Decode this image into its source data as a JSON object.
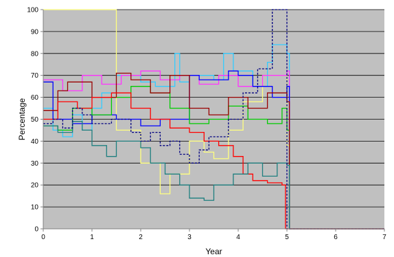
{
  "chart_data": {
    "type": "line",
    "title": "",
    "xlabel": "Year",
    "ylabel": "Percentage",
    "xlim": [
      0,
      7
    ],
    "ylim": [
      0,
      100
    ],
    "x_ticks": [
      "0",
      "1",
      "2",
      "3",
      "4",
      "5",
      "6",
      "7"
    ],
    "y_ticks": [
      "0",
      "10",
      "20",
      "30",
      "40",
      "50",
      "60",
      "70",
      "80",
      "90",
      "100"
    ],
    "grid": "horizontal",
    "legend": "none",
    "colors": {
      "plot_background": "#c0c0c0",
      "gridlines": "#000000",
      "page_background": "#ffffff"
    },
    "series": [
      {
        "color": "#ffff80",
        "x": [
          0,
          1.5,
          1.5,
          2.0,
          2.0,
          2.4,
          2.4,
          2.6,
          2.6,
          3.0,
          3.0,
          3.3,
          3.3,
          3.5,
          3.5,
          3.8,
          3.8,
          4.1,
          4.1,
          4.5,
          4.5,
          5.0,
          5.0,
          5.05,
          5.05,
          7.0
        ],
        "y": [
          100,
          100,
          45,
          45,
          30,
          30,
          16,
          16,
          25,
          25,
          40,
          40,
          35,
          35,
          32,
          32,
          45,
          45,
          58,
          58,
          70,
          70,
          38,
          38,
          0,
          0
        ]
      },
      {
        "color": "#33ccff",
        "x": [
          0,
          0.2,
          0.2,
          0.4,
          0.4,
          0.6,
          0.6,
          0.8,
          0.8,
          1.0,
          1.0,
          1.2,
          1.2,
          1.5,
          1.5,
          2.0,
          2.0,
          2.3,
          2.3,
          2.7,
          2.7,
          2.8,
          2.8,
          3.0,
          3.0,
          3.5,
          3.5,
          3.7,
          3.7,
          3.9,
          3.9,
          4.3,
          4.3,
          4.6,
          4.6,
          4.7,
          4.7,
          5.0,
          5.0,
          5.05,
          5.05,
          7.0
        ],
        "y": [
          55,
          55,
          45,
          45,
          42,
          42,
          52,
          52,
          45,
          45,
          55,
          55,
          62,
          62,
          70,
          70,
          67,
          67,
          65,
          65,
          80,
          80,
          67,
          67,
          70,
          70,
          68,
          68,
          80,
          80,
          72,
          72,
          65,
          65,
          76,
          76,
          84,
          84,
          80,
          80,
          0,
          0
        ]
      },
      {
        "color": "#ff33ff",
        "x": [
          0,
          0.4,
          0.4,
          0.8,
          0.8,
          1.2,
          1.2,
          1.6,
          1.6,
          2.0,
          2.0,
          2.4,
          2.4,
          2.8,
          2.8,
          3.2,
          3.2,
          3.6,
          3.6,
          4.0,
          4.0,
          4.5,
          4.5,
          5.0,
          5.0,
          5.05,
          5.05,
          7.0
        ],
        "y": [
          68,
          68,
          63,
          63,
          70,
          70,
          66,
          66,
          70,
          70,
          72,
          72,
          68,
          68,
          70,
          70,
          66,
          66,
          70,
          70,
          65,
          65,
          70,
          70,
          72,
          72,
          0,
          0
        ]
      },
      {
        "color": "#0000ff",
        "x": [
          0,
          0.2,
          0.2,
          0.6,
          0.6,
          1.0,
          1.0,
          1.5,
          1.5,
          2.0,
          2.0,
          2.4,
          2.4,
          3.0,
          3.0,
          3.2,
          3.2,
          3.8,
          3.8,
          4.0,
          4.0,
          4.3,
          4.3,
          4.7,
          4.7,
          5.0,
          5.0,
          5.05,
          5.05,
          7.0
        ],
        "y": [
          67,
          67,
          50,
          50,
          48,
          48,
          52,
          52,
          50,
          50,
          47,
          47,
          50,
          50,
          70,
          70,
          68,
          68,
          72,
          72,
          70,
          70,
          65,
          65,
          60,
          60,
          65,
          65,
          0,
          0
        ]
      },
      {
        "color": "#00cc00",
        "x": [
          0,
          0.3,
          0.3,
          0.6,
          0.6,
          1.0,
          1.0,
          1.4,
          1.4,
          1.8,
          1.8,
          2.2,
          2.2,
          2.6,
          2.6,
          3.0,
          3.0,
          3.4,
          3.4,
          3.8,
          3.8,
          4.2,
          4.2,
          4.6,
          4.6,
          4.9,
          4.9,
          5.0,
          5.0,
          5.05,
          5.05,
          7.0
        ],
        "y": [
          47,
          47,
          45,
          45,
          55,
          55,
          52,
          52,
          60,
          60,
          65,
          65,
          62,
          62,
          55,
          55,
          48,
          48,
          50,
          50,
          56,
          56,
          50,
          50,
          48,
          48,
          55,
          55,
          45,
          45,
          0,
          0
        ]
      },
      {
        "color": "#990000",
        "x": [
          0,
          0.3,
          0.3,
          0.5,
          0.5,
          1.0,
          1.0,
          1.5,
          1.5,
          1.8,
          1.8,
          2.2,
          2.2,
          2.6,
          2.6,
          3.0,
          3.0,
          3.4,
          3.4,
          3.8,
          3.8,
          4.2,
          4.2,
          4.6,
          4.6,
          5.0,
          5.0,
          5.05,
          5.05,
          7.0
        ],
        "y": [
          54,
          54,
          63,
          63,
          67,
          67,
          60,
          60,
          71,
          71,
          68,
          68,
          62,
          62,
          70,
          70,
          55,
          55,
          52,
          52,
          60,
          60,
          55,
          55,
          62,
          62,
          58,
          58,
          0,
          0
        ]
      },
      {
        "color": "#ff0000",
        "x": [
          0,
          0.3,
          0.3,
          0.7,
          0.7,
          1.0,
          1.0,
          1.4,
          1.4,
          1.8,
          1.8,
          2.2,
          2.2,
          2.6,
          2.6,
          3.0,
          3.0,
          3.3,
          3.3,
          3.6,
          3.6,
          3.9,
          3.9,
          4.1,
          4.1,
          4.3,
          4.3,
          4.6,
          4.6,
          4.9,
          4.9,
          4.97,
          4.97,
          5.05,
          5.05,
          7.0
        ],
        "y": [
          50,
          50,
          58,
          58,
          55,
          55,
          60,
          60,
          62,
          62,
          55,
          55,
          50,
          50,
          46,
          46,
          44,
          44,
          40,
          40,
          38,
          38,
          33,
          33,
          25,
          25,
          22,
          22,
          21,
          21,
          20,
          20,
          0,
          0,
          0,
          0
        ]
      },
      {
        "color": "#1e7f7f",
        "x": [
          0,
          0.3,
          0.3,
          0.6,
          0.6,
          0.8,
          0.8,
          1.0,
          1.0,
          1.3,
          1.3,
          1.5,
          1.5,
          2.0,
          2.0,
          2.2,
          2.2,
          2.5,
          2.5,
          2.8,
          2.8,
          3.0,
          3.0,
          3.3,
          3.3,
          3.5,
          3.5,
          3.9,
          3.9,
          4.2,
          4.2,
          4.5,
          4.5,
          4.8,
          4.8,
          5.0,
          5.0,
          5.05,
          5.05,
          7.0
        ],
        "y": [
          47,
          47,
          44,
          44,
          49,
          49,
          45,
          45,
          38,
          38,
          33,
          33,
          40,
          40,
          37,
          37,
          30,
          30,
          25,
          25,
          20,
          20,
          14,
          14,
          13,
          13,
          20,
          20,
          25,
          25,
          30,
          30,
          24,
          24,
          30,
          30,
          29,
          29,
          0,
          0
        ]
      },
      {
        "color": "#000080",
        "dashed": true,
        "x": [
          0,
          0.2,
          0.2,
          0.4,
          0.4,
          0.6,
          0.6,
          0.8,
          0.8,
          1.0,
          1.0,
          1.4,
          1.4,
          1.8,
          1.8,
          2.0,
          2.0,
          2.2,
          2.2,
          2.4,
          2.4,
          2.6,
          2.6,
          2.8,
          2.8,
          3.0,
          3.0,
          3.2,
          3.2,
          3.4,
          3.4,
          3.8,
          3.8,
          4.1,
          4.1,
          4.4,
          4.4,
          4.7,
          4.7,
          5.0,
          5.0,
          5.05,
          5.05,
          7.0
        ],
        "y": [
          48,
          48,
          50,
          50,
          46,
          46,
          55,
          55,
          52,
          52,
          48,
          48,
          50,
          50,
          44,
          44,
          40,
          40,
          44,
          44,
          38,
          38,
          40,
          40,
          34,
          34,
          30,
          30,
          36,
          36,
          42,
          42,
          50,
          50,
          62,
          62,
          73,
          73,
          100,
          100,
          0,
          0,
          0,
          0
        ]
      },
      {
        "color": "#ff9999",
        "x": [
          5.05,
          7.0
        ],
        "y": [
          0,
          0
        ]
      }
    ]
  }
}
